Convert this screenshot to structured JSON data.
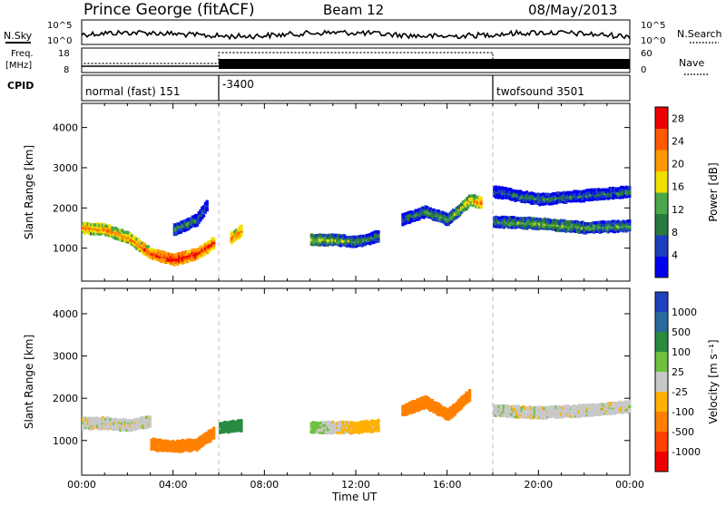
{
  "header": {
    "station": "Prince George (fitACF)",
    "beam": "Beam 12",
    "date": "08/May/2013"
  },
  "status_panels": {
    "nsky_label": "N.Sky",
    "nsearch_label": "N.Search",
    "freq_label_line1": "Freq.",
    "freq_label_line2": "[MHz]",
    "nave_label": "Nave",
    "cpid_label": "CPID",
    "left_ticks_noise": [
      "10^5",
      "10^0"
    ],
    "right_ticks_noise": [
      "10^5",
      "10^0"
    ],
    "left_ticks_freq": [
      "18",
      "8"
    ],
    "right_ticks_freq": [
      "60",
      "0"
    ],
    "cpid_segments": [
      {
        "start_hour": 0,
        "end_hour": 6,
        "label": "normal (fast) 151"
      },
      {
        "start_hour": 6,
        "end_hour": 18,
        "label": "-3400"
      },
      {
        "start_hour": 18,
        "end_hour": 24,
        "label": "twofsound 3501"
      }
    ]
  },
  "colors": {
    "power_scale": [
      "#0000ee",
      "#1c3fbf",
      "#2a7a3f",
      "#4aa84a",
      "#f0e000",
      "#ff9800",
      "#ff5a00",
      "#ee0000"
    ],
    "velocity_scale": [
      "#2040c0",
      "#2a6a9a",
      "#2a8a40",
      "#70c040",
      "#c8c8c8",
      "#ffb000",
      "#ff8000",
      "#ff4000",
      "#ee0000"
    ]
  },
  "chart_data": [
    {
      "type": "heatmap",
      "title": "",
      "xlabel": "",
      "ylabel": "Slant Range [km]",
      "xlim": [
        0,
        24
      ],
      "ylim": [
        180,
        4600
      ],
      "yticks": [
        "1000",
        "2000",
        "3000",
        "4000"
      ],
      "colorbar_label": "Power [dB]",
      "colorbar_ticks": [
        "4",
        "8",
        "12",
        "16",
        "20",
        "24",
        "28"
      ],
      "colorbar_range": [
        0,
        30
      ],
      "bands": [
        {
          "name": "",
          "points": [
            [
              0,
              1500,
              22
            ],
            [
              1,
              1450,
              22
            ],
            [
              2,
              1250,
              21
            ],
            [
              3,
              850,
              26
            ],
            [
              4,
              700,
              29
            ],
            [
              5,
              850,
              28
            ],
            [
              5.8,
              1150,
              26
            ]
          ]
        },
        {
          "name": "",
          "points": [
            [
              4,
              1450,
              12
            ],
            [
              5,
              1700,
              10
            ],
            [
              5.5,
              2100,
              8
            ]
          ]
        },
        {
          "name": "",
          "points": [
            [
              6.5,
              1250,
              24
            ],
            [
              7,
              1450,
              22
            ]
          ]
        },
        {
          "name": "",
          "points": [
            [
              10,
              1200,
              16
            ],
            [
              11,
              1200,
              14
            ],
            [
              12,
              1150,
              12
            ],
            [
              13,
              1300,
              10
            ]
          ]
        },
        {
          "name": "",
          "points": [
            [
              14,
              1700,
              9
            ],
            [
              15,
              1900,
              12
            ],
            [
              16,
              1700,
              13
            ],
            [
              17,
              2200,
              20
            ],
            [
              17.5,
              2100,
              22
            ]
          ]
        },
        {
          "name": "",
          "points": [
            [
              18,
              2400,
              8
            ],
            [
              20,
              2200,
              10
            ],
            [
              22,
              2300,
              9
            ],
            [
              24,
              2400,
              10
            ]
          ]
        },
        {
          "name": "",
          "points": [
            [
              18,
              1650,
              12
            ],
            [
              20,
              1600,
              14
            ],
            [
              22,
              1500,
              13
            ],
            [
              24,
              1550,
              12
            ]
          ]
        }
      ]
    },
    {
      "type": "heatmap",
      "title": "",
      "xlabel": "Time UT",
      "ylabel": "Slant Range [km]",
      "xlim": [
        0,
        24
      ],
      "ylim": [
        180,
        4600
      ],
      "yticks": [
        "1000",
        "2000",
        "3000",
        "4000"
      ],
      "xticks": [
        "00:00",
        "04:00",
        "08:00",
        "12:00",
        "16:00",
        "20:00",
        "00:00"
      ],
      "colorbar_label": "Velocity [m s⁻¹]",
      "colorbar_ticks": [
        "1000",
        "500",
        "100",
        "25",
        "-25",
        "-100",
        "-500",
        "-1000"
      ],
      "bands": [
        {
          "name": "",
          "points": [
            [
              0,
              1400,
              0
            ],
            [
              1,
              1400,
              0
            ],
            [
              2,
              1350,
              0
            ],
            [
              3,
              1450,
              0
            ]
          ]
        },
        {
          "name": "",
          "points": [
            [
              3,
              900,
              -200
            ],
            [
              4,
              850,
              -300
            ],
            [
              5,
              900,
              -250
            ],
            [
              5.8,
              1200,
              -200
            ]
          ]
        },
        {
          "name": "",
          "points": [
            [
              6,
              1300,
              400
            ],
            [
              7,
              1350,
              200
            ]
          ]
        },
        {
          "name": "",
          "points": [
            [
              10,
              1300,
              50
            ],
            [
              12,
              1300,
              -60
            ],
            [
              13,
              1350,
              -50
            ]
          ]
        },
        {
          "name": "",
          "points": [
            [
              14,
              1700,
              -300
            ],
            [
              15,
              1900,
              -400
            ],
            [
              16,
              1600,
              -250
            ],
            [
              17,
              2100,
              -350
            ]
          ]
        },
        {
          "name": "",
          "points": [
            [
              18,
              1700,
              0
            ],
            [
              20,
              1650,
              0
            ],
            [
              22,
              1700,
              0
            ],
            [
              24,
              1800,
              0
            ]
          ]
        }
      ]
    }
  ]
}
